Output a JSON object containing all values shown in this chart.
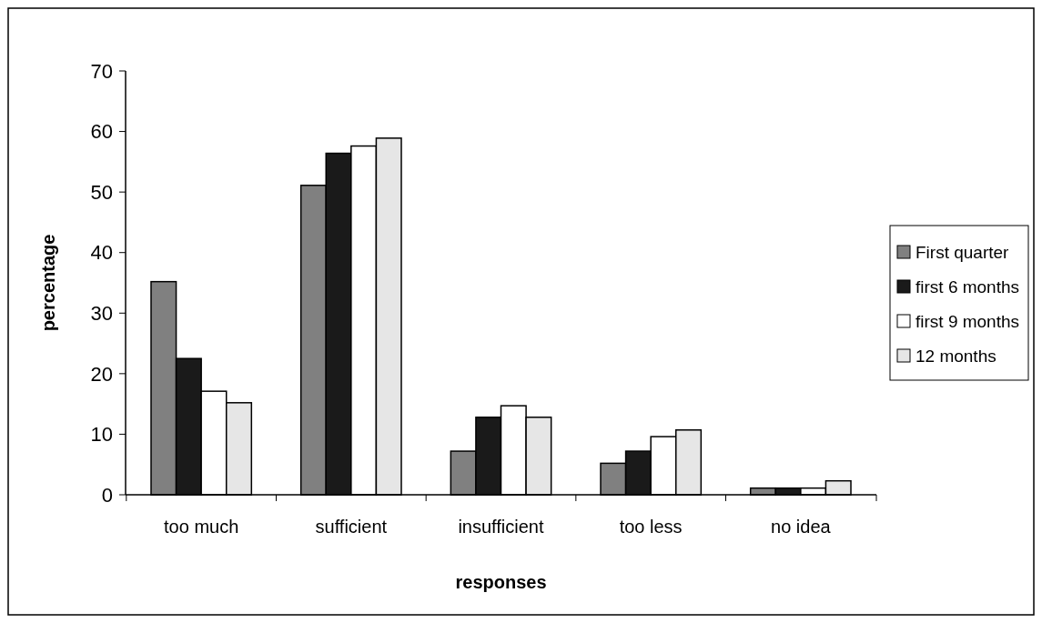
{
  "chart_data": {
    "type": "bar",
    "xlabel": "responses",
    "ylabel": "percentage",
    "categories": [
      "too much",
      "sufficient",
      "insufficient",
      "too less",
      "no idea"
    ],
    "series": [
      {
        "name": "First quarter",
        "color": "#808080",
        "values": [
          35.2,
          51.1,
          7.2,
          5.2,
          1.1
        ]
      },
      {
        "name": "first 6 months",
        "color": "#1a1a1a",
        "values": [
          22.5,
          56.4,
          12.8,
          7.2,
          1.1
        ]
      },
      {
        "name": "first 9 months",
        "color": "#ffffff",
        "values": [
          17.1,
          57.6,
          14.7,
          9.6,
          1.1
        ]
      },
      {
        "name": "12 months",
        "color": "#e6e6e6",
        "values": [
          15.2,
          58.9,
          12.8,
          10.7,
          2.3
        ]
      }
    ],
    "ylim": [
      0,
      70
    ],
    "yticks": [
      0,
      10,
      20,
      30,
      40,
      50,
      60,
      70
    ],
    "grid": false,
    "legend": "right"
  }
}
